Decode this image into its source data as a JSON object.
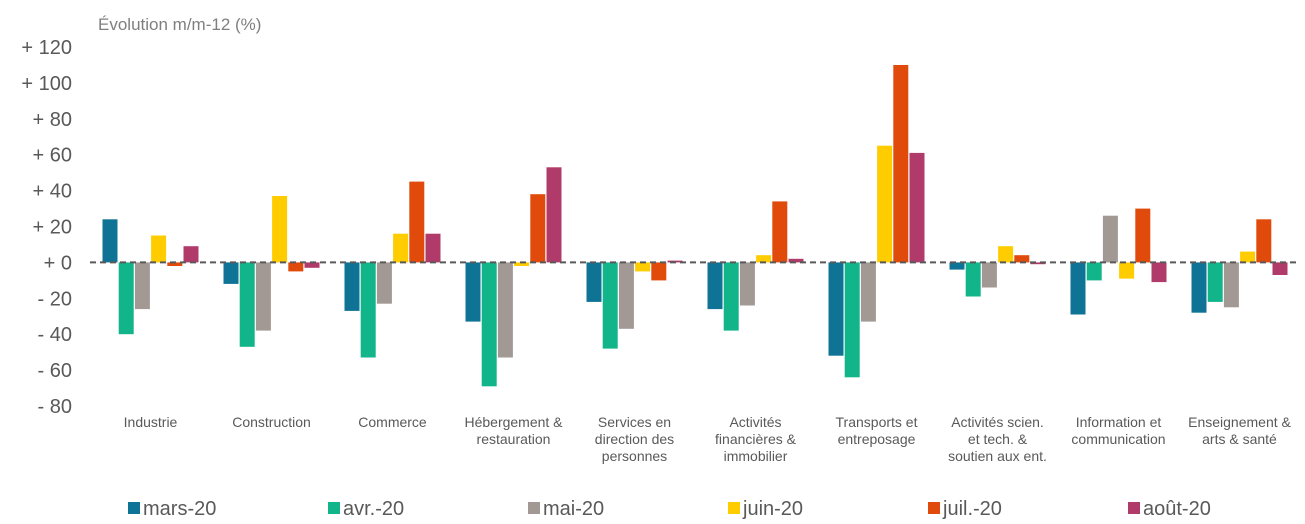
{
  "chart_data": {
    "type": "bar",
    "ylabel": "Évolution m/m-12 (%)",
    "ylim": [
      -80,
      120
    ],
    "yticks": [
      120,
      100,
      80,
      60,
      40,
      20,
      0,
      -20,
      -40,
      -60,
      -80
    ],
    "ytick_labels": [
      "+ 120",
      "+ 100",
      "+ 80",
      "+ 60",
      "+ 40",
      "+ 20",
      "+ 0",
      "- 20",
      "- 40",
      "- 60",
      "- 80"
    ],
    "grid": false,
    "zero_line": "dashed",
    "legend_position": "bottom",
    "categories": [
      [
        "Industrie"
      ],
      [
        "Construction"
      ],
      [
        "Commerce"
      ],
      [
        "Hébergement &",
        "restauration"
      ],
      [
        "Services en",
        "direction des",
        "personnes"
      ],
      [
        "Activités",
        "financières &",
        "immobilier"
      ],
      [
        "Transports et",
        "entreposage"
      ],
      [
        "Activités scien.",
        "et tech. &",
        "soutien aux ent."
      ],
      [
        "Information et",
        "communication"
      ],
      [
        "Enseignement &",
        "arts & santé"
      ]
    ],
    "series": [
      {
        "name": "mars-20",
        "color": "#0f7396",
        "values": [
          24,
          -12,
          -27,
          -33,
          -22,
          -26,
          -52,
          -4,
          -29,
          -28
        ]
      },
      {
        "name": "avr.-20",
        "color": "#12b48a",
        "values": [
          -40,
          -47,
          -53,
          -69,
          -48,
          -38,
          -64,
          -19,
          -10,
          -22
        ]
      },
      {
        "name": "mai-20",
        "color": "#a39994",
        "values": [
          -26,
          -38,
          -23,
          -53,
          -37,
          -24,
          -33,
          -14,
          26,
          -25
        ]
      },
      {
        "name": "juin-20",
        "color": "#ffcc00",
        "values": [
          15,
          37,
          16,
          -2,
          -5,
          4,
          65,
          9,
          -9,
          6
        ]
      },
      {
        "name": "juil.-20",
        "color": "#e04a0a",
        "values": [
          -2,
          -5,
          45,
          38,
          -10,
          34,
          110,
          4,
          30,
          24
        ]
      },
      {
        "name": "août-20",
        "color": "#b03a6a",
        "values": [
          9,
          -3,
          16,
          53,
          1,
          2,
          61,
          -1,
          -11,
          -7
        ]
      }
    ]
  }
}
